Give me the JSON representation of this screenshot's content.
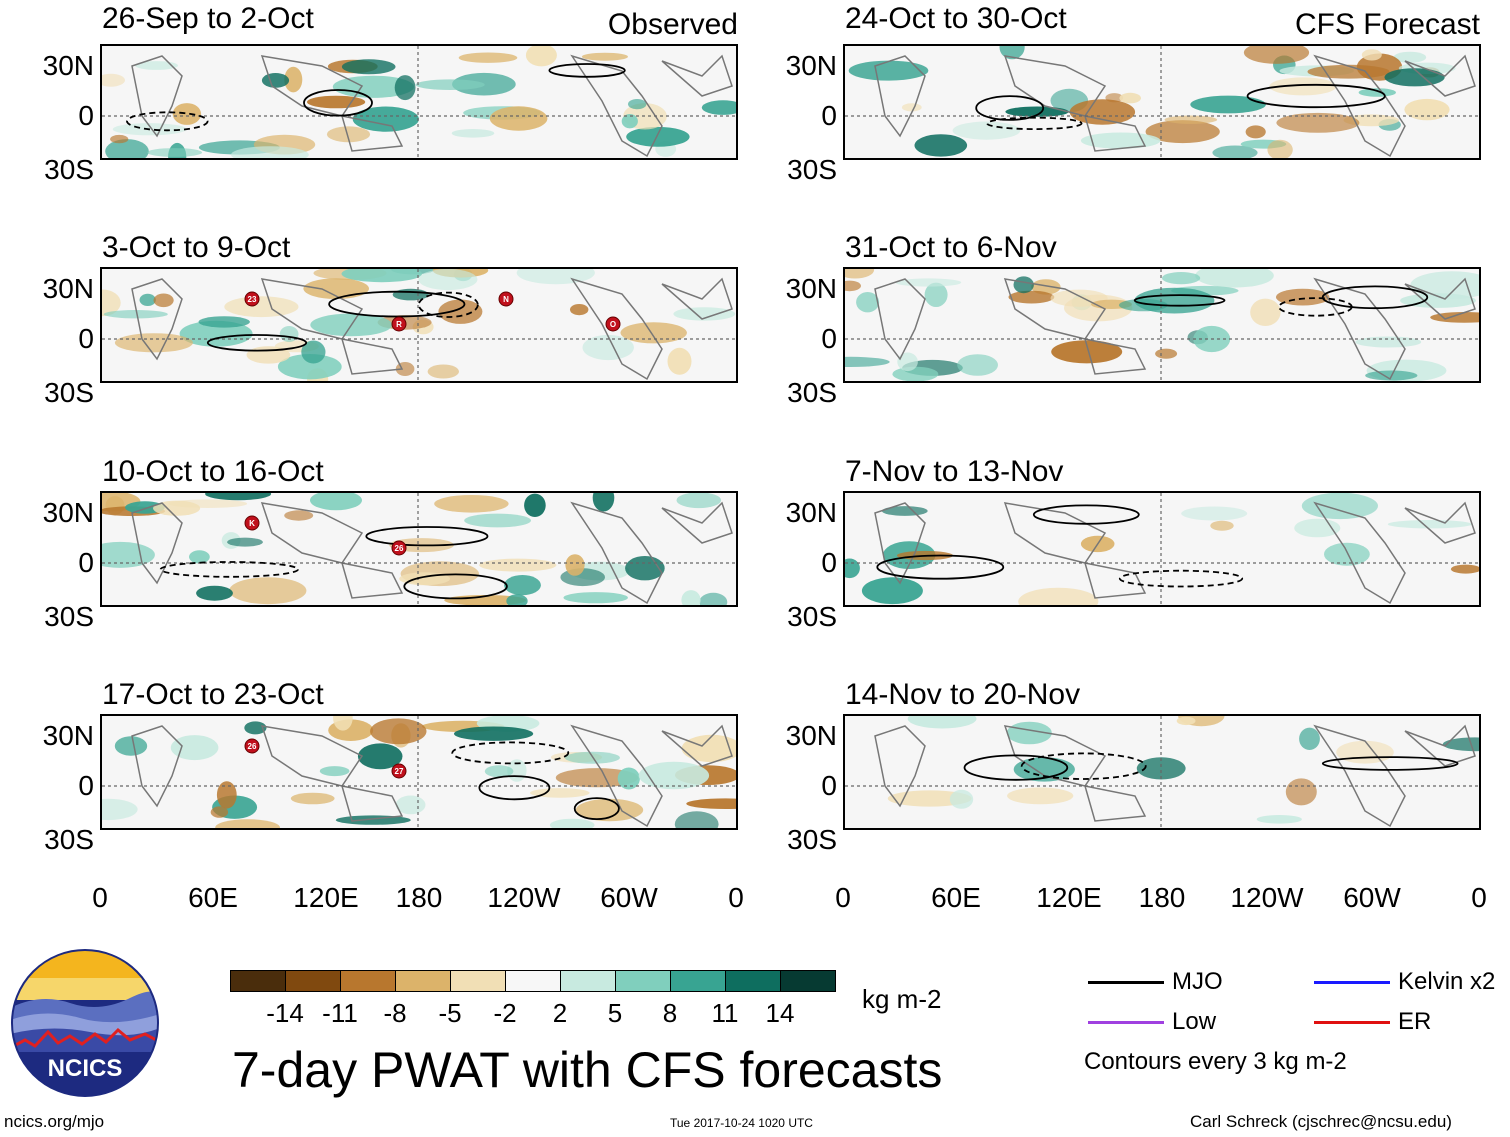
{
  "observed_label": "Observed",
  "forecast_label": "CFS Forecast",
  "panels_left": [
    {
      "period": "26-Sep to 2-Oct"
    },
    {
      "period": "3-Oct to 9-Oct",
      "storms": [
        "23",
        "R",
        "N",
        "O"
      ]
    },
    {
      "period": "10-Oct to 16-Oct",
      "storms": [
        "K",
        "26"
      ]
    },
    {
      "period": "17-Oct to 23-Oct",
      "storms": [
        "26",
        "27"
      ]
    }
  ],
  "panels_right": [
    {
      "period": "24-Oct to 30-Oct"
    },
    {
      "period": "31-Oct to 6-Nov"
    },
    {
      "period": "7-Nov to 13-Nov"
    },
    {
      "period": "14-Nov to 20-Nov"
    }
  ],
  "lat_labels": [
    "30N",
    "0",
    "30S"
  ],
  "lon_labels": [
    "0",
    "60E",
    "120E",
    "180",
    "120W",
    "60W",
    "0"
  ],
  "colorbar": {
    "colors": [
      "#4a2d0c",
      "#80490f",
      "#b8772e",
      "#dcb36a",
      "#f1dfb5",
      "#f7f7f7",
      "#c8eae0",
      "#80cfbd",
      "#38a492",
      "#0e6e5f",
      "#063a32"
    ],
    "labels": [
      "-14",
      "-11",
      "-8",
      "-5",
      "-2",
      "2",
      "5",
      "8",
      "11",
      "14"
    ],
    "units": "kg m-2"
  },
  "title": "7-day PWAT with CFS forecasts",
  "legend": [
    {
      "label": "MJO",
      "color": "#000000"
    },
    {
      "label": "Kelvin x2",
      "color": "#1a1aff"
    },
    {
      "label": "Low",
      "color": "#a040e0"
    },
    {
      "label": "ER",
      "color": "#e01010"
    }
  ],
  "contour_note": "Contours every 3 kg m-2",
  "logo_text": "NCICS",
  "footer": {
    "url": "ncics.org/mjo",
    "timestamp": "Tue 2017-10-24 1020 UTC",
    "author": "Carl Schreck (cjschrec@ncsu.edu)"
  }
}
